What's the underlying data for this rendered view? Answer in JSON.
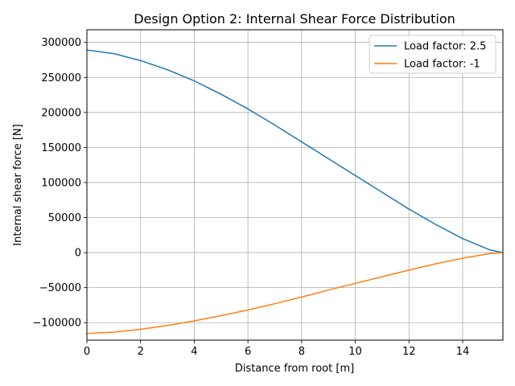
{
  "chart_data": {
    "type": "line",
    "title": "Design Option 2: Internal Shear Force Distribution",
    "xlabel": "Distance from root [m]",
    "ylabel": "Internal shear force [N]",
    "xlim": [
      0,
      15.5
    ],
    "ylim": [
      -125000,
      318000
    ],
    "xticks": [
      0,
      2,
      4,
      6,
      8,
      10,
      12,
      14
    ],
    "yticks": [
      -100000,
      -50000,
      0,
      50000,
      100000,
      150000,
      200000,
      250000,
      300000
    ],
    "xtick_labels": [
      "0",
      "2",
      "4",
      "6",
      "8",
      "10",
      "12",
      "14"
    ],
    "ytick_labels": [
      "−100000",
      "−50000",
      "0",
      "50000",
      "100000",
      "150000",
      "200000",
      "250000",
      "300000"
    ],
    "grid": true,
    "legend_position": "upper right",
    "x": [
      0,
      1,
      2,
      3,
      4,
      5,
      6,
      7,
      8,
      9,
      10,
      11,
      12,
      13,
      14,
      15,
      15.5
    ],
    "series": [
      {
        "name": "Load factor: 2.5",
        "color": "#1f77b4",
        "values": [
          289000,
          284000,
          274000,
          261000,
          245000,
          226000,
          205000,
          182000,
          158000,
          134000,
          110000,
          86000,
          62000,
          40000,
          20000,
          4000,
          0
        ]
      },
      {
        "name": "Load factor: -1",
        "color": "#ff7f0e",
        "values": [
          -115500,
          -113500,
          -109500,
          -104000,
          -97500,
          -90000,
          -82000,
          -73000,
          -63500,
          -53500,
          -44000,
          -34500,
          -25000,
          -16000,
          -8000,
          -1500,
          0
        ]
      }
    ]
  }
}
